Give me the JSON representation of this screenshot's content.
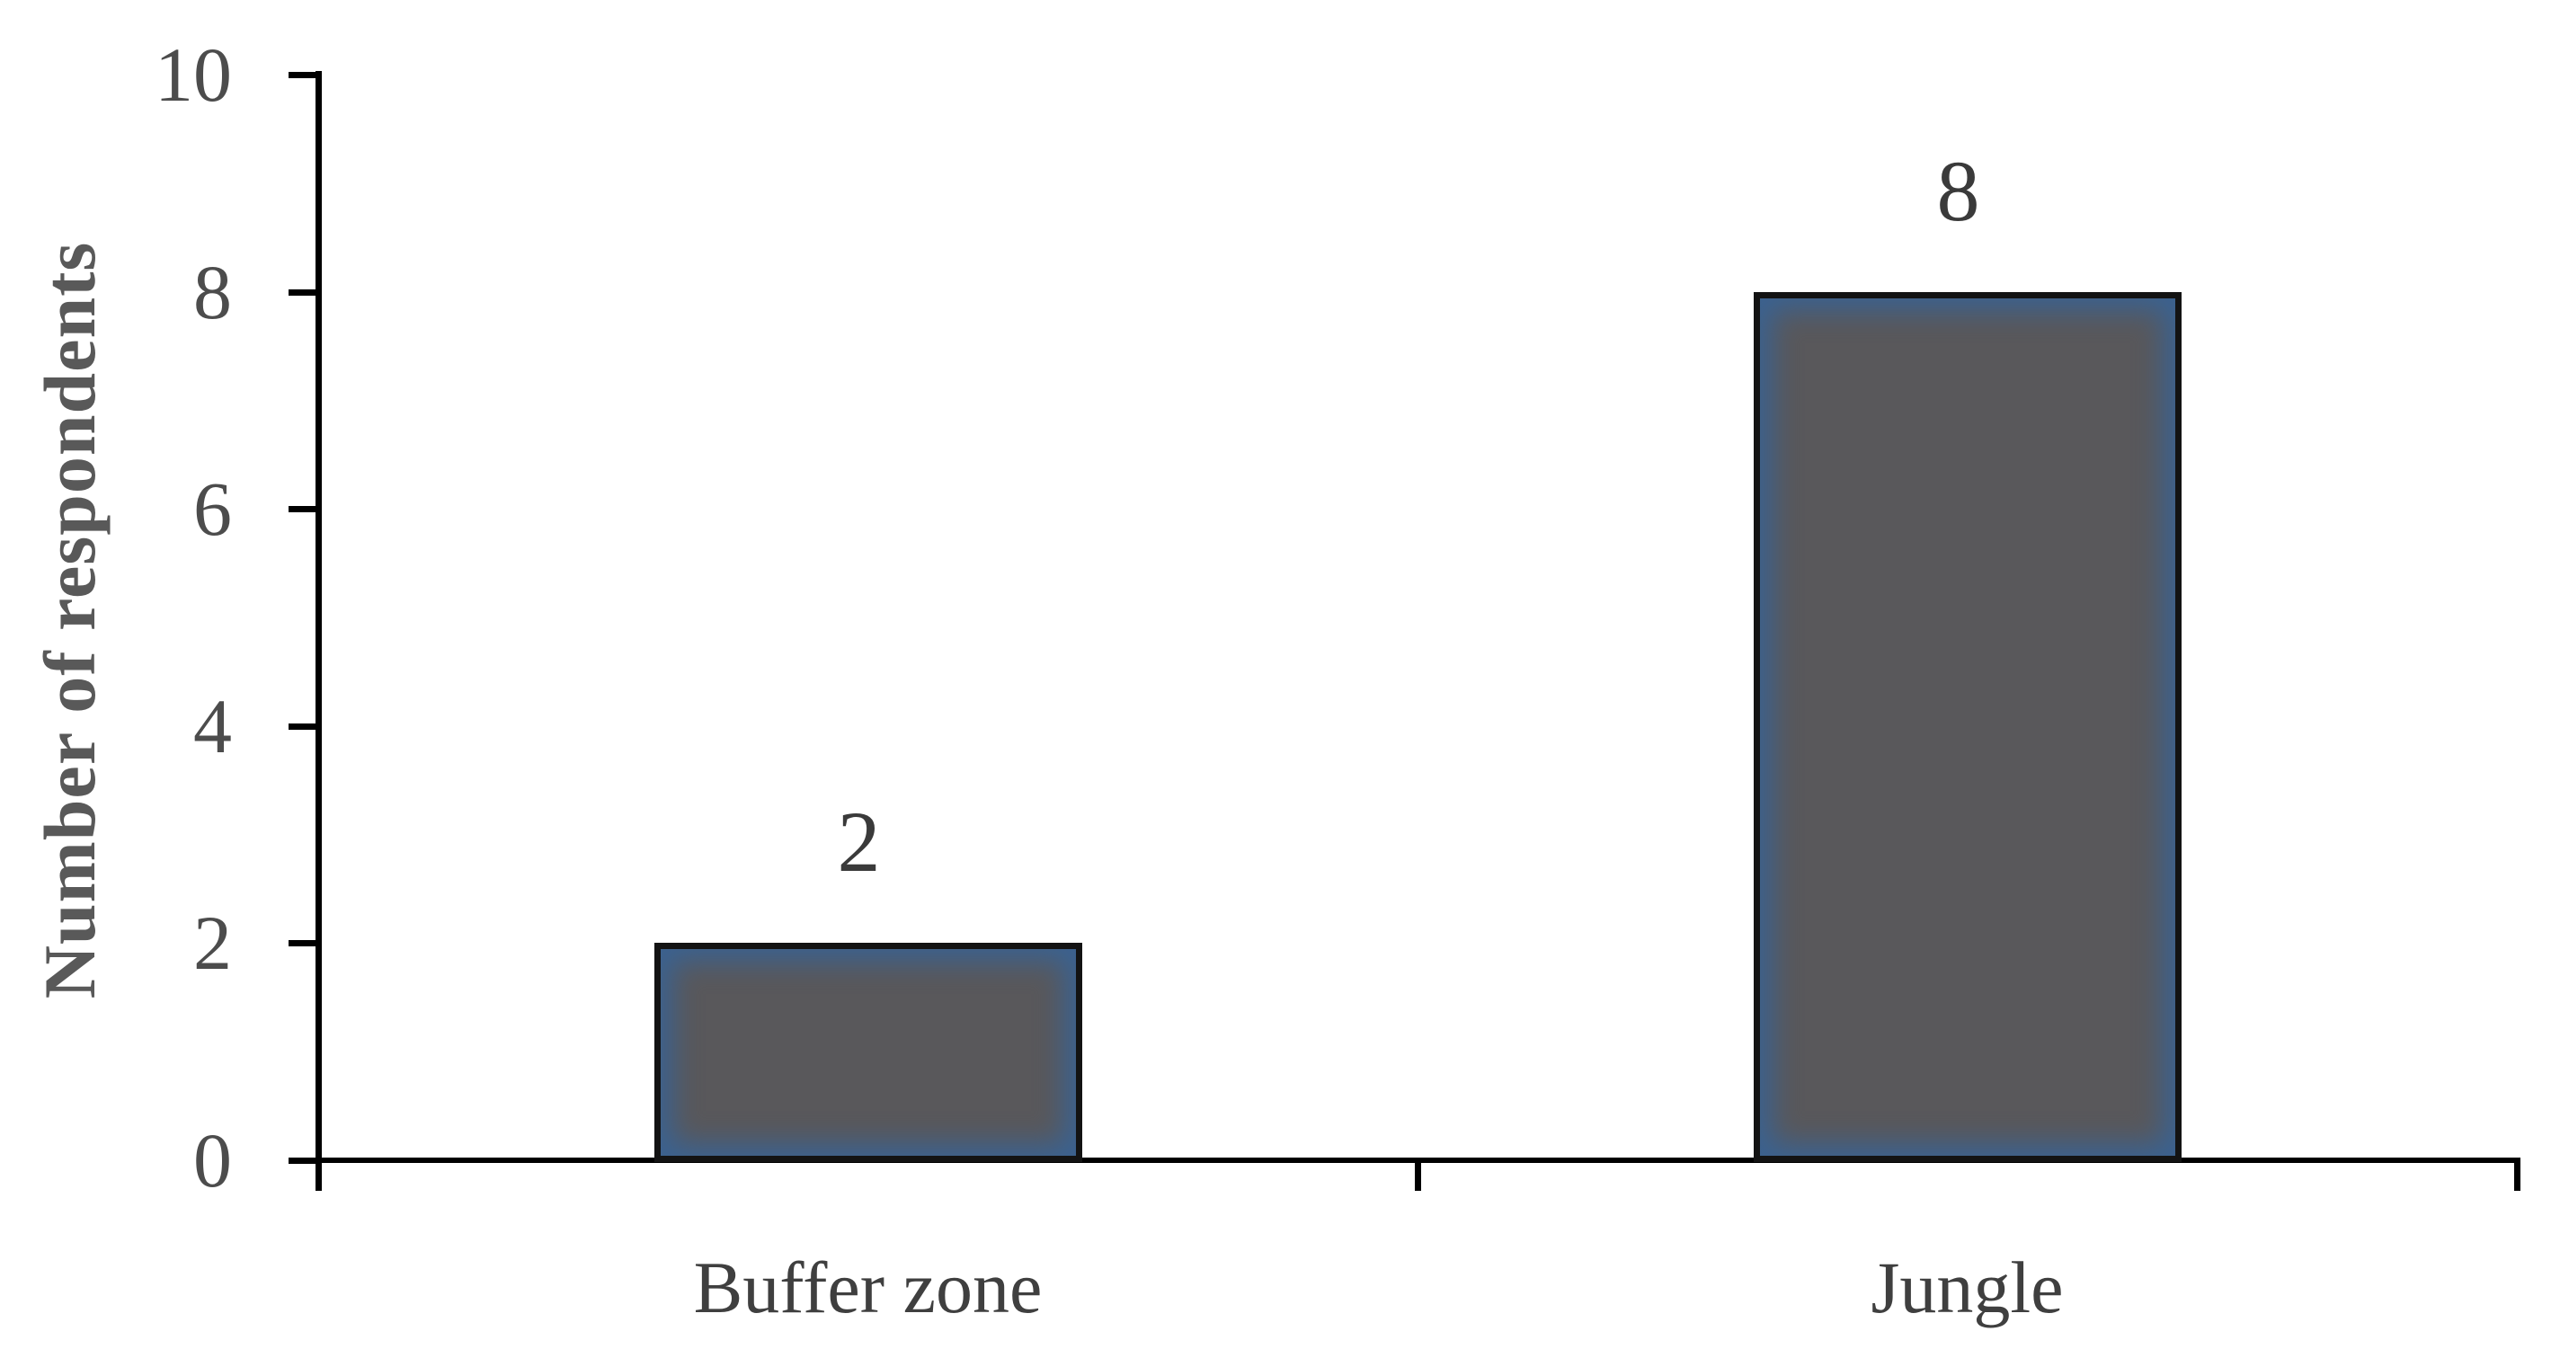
{
  "chart_data": {
    "type": "bar",
    "categories": [
      "Buffer zone",
      "Jungle"
    ],
    "values": [
      2,
      8
    ],
    "data_labels": [
      "2",
      "8"
    ],
    "title": "",
    "xlabel": "",
    "ylabel": "Number of respondents",
    "ylim": [
      0,
      10
    ],
    "yticks": [
      0,
      2,
      4,
      6,
      8,
      10
    ],
    "ytick_labels": [
      "0",
      "2",
      "4",
      "6",
      "8",
      "10"
    ],
    "grid": "off",
    "legend": "none",
    "colors": {
      "bar_fill": "#59585b",
      "bar_edge_glow": "#3b6290",
      "bar_border": "#131313",
      "axis": "#000000",
      "tick_label": "#4c4c4c",
      "category_label": "#3f3f3f",
      "value_label": "#3a3a3a",
      "y_title": "#595959",
      "background": "#ffffff"
    }
  }
}
